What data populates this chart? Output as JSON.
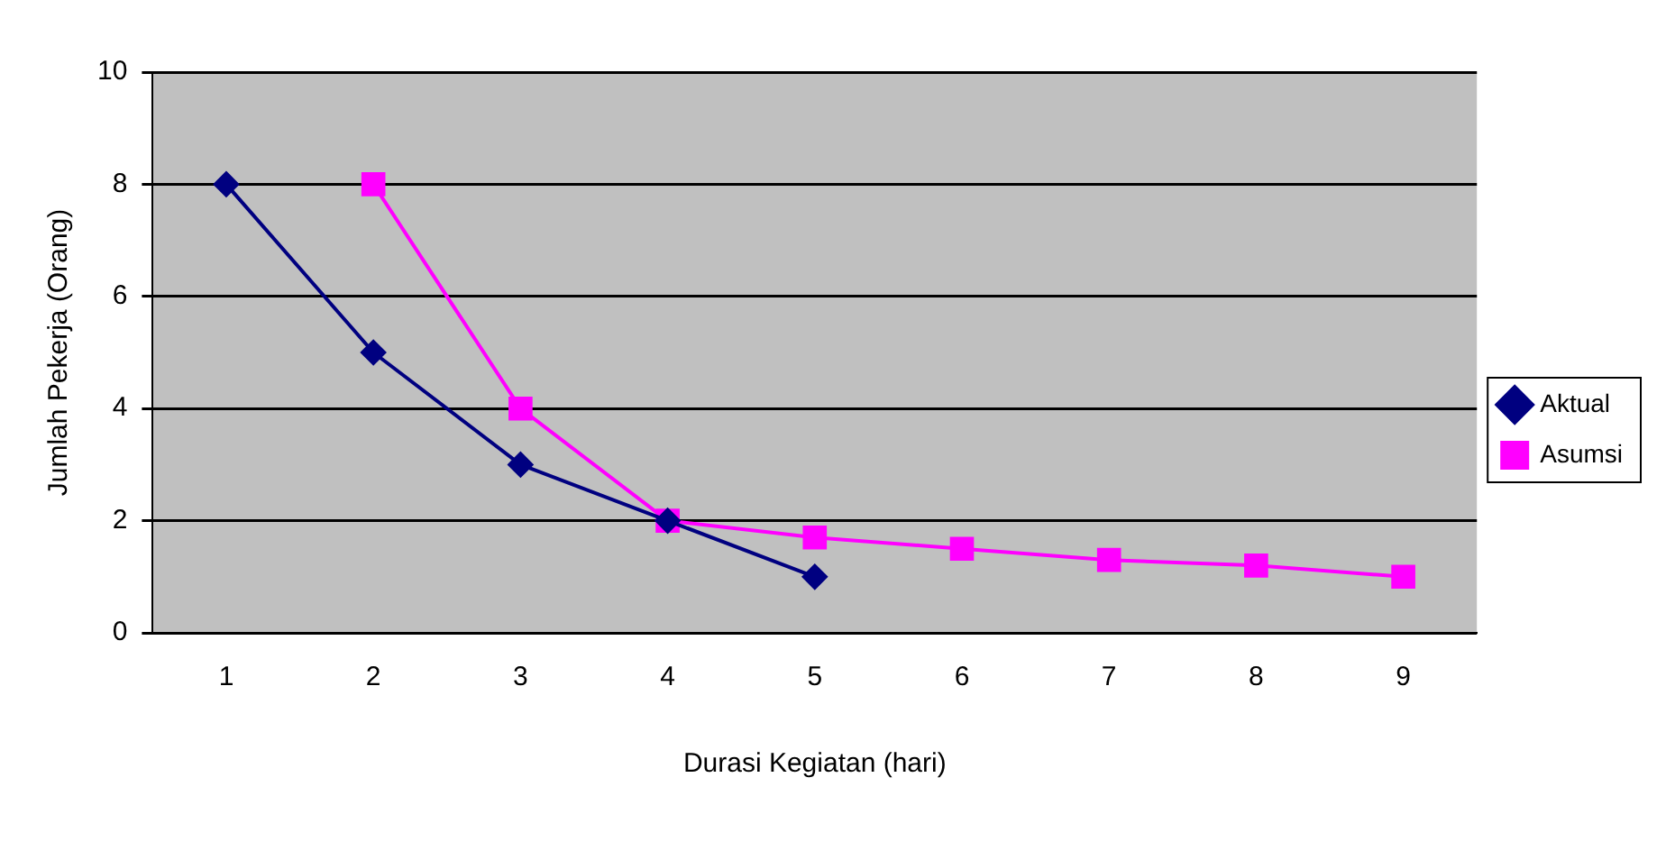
{
  "chart_data": {
    "type": "line",
    "xlabel": "Durasi Kegiatan (hari)",
    "ylabel": "Jumlah Pekerja (Orang)",
    "categories": [
      "1",
      "2",
      "3",
      "4",
      "5",
      "6",
      "7",
      "8",
      "9"
    ],
    "series": [
      {
        "name": "Aktual",
        "color": "#000080",
        "marker": "diamond",
        "values": [
          8,
          5,
          3,
          2,
          1,
          null,
          null,
          null,
          null
        ]
      },
      {
        "name": "Asumsi",
        "color": "#ff00ff",
        "marker": "square",
        "values": [
          null,
          8,
          4,
          2,
          1.7,
          1.5,
          1.3,
          1.2,
          1.0
        ]
      }
    ],
    "ylim": [
      0,
      10
    ],
    "yticks": [
      0,
      2,
      4,
      6,
      8,
      10
    ],
    "grid": "y",
    "legend": "right",
    "line_style": "solid"
  }
}
